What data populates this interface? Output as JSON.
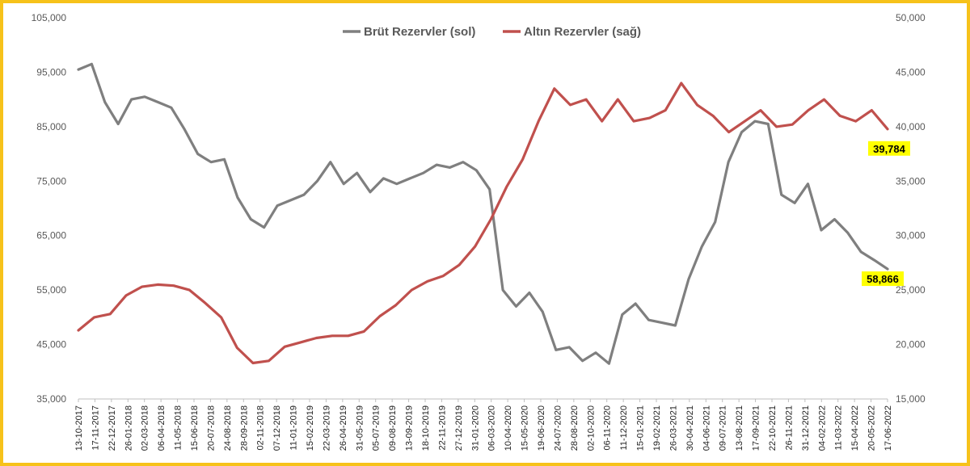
{
  "chart_data": {
    "type": "line",
    "title": "",
    "xlabel": "",
    "ylabel": "",
    "y_left_lim": [
      35000,
      105000
    ],
    "y_right_lim": [
      15000,
      50000
    ],
    "y_left_ticks": [
      "35,000",
      "45,000",
      "55,000",
      "65,000",
      "75,000",
      "85,000",
      "95,000",
      "105,000"
    ],
    "y_right_ticks": [
      "15,000",
      "20,000",
      "25,000",
      "30,000",
      "35,000",
      "40,000",
      "45,000",
      "50,000"
    ],
    "x_ticks": [
      "13-10-2017",
      "17-11-2017",
      "22-12-2017",
      "26-01-2018",
      "02-03-2018",
      "06-04-2018",
      "11-05-2018",
      "15-06-2018",
      "20-07-2018",
      "24-08-2018",
      "28-09-2018",
      "02-11-2018",
      "07-12-2018",
      "11-01-2019",
      "15-02-2019",
      "22-03-2019",
      "26-04-2019",
      "31-05-2019",
      "05-07-2019",
      "09-08-2019",
      "13-09-2019",
      "18-10-2019",
      "22-11-2019",
      "27-12-2019",
      "31-01-2020",
      "06-03-2020",
      "10-04-2020",
      "15-05-2020",
      "19-06-2020",
      "24-07-2020",
      "28-08-2020",
      "02-10-2020",
      "06-11-2020",
      "11-12-2020",
      "15-01-2021",
      "19-02-2021",
      "26-03-2021",
      "30-04-2021",
      "04-06-2021",
      "09-07-2021",
      "13-08-2021",
      "17-09-2021",
      "22-10-2021",
      "26-11-2021",
      "31-12-2021",
      "04-02-2022",
      "11-03-2022",
      "15-04-2022",
      "20-05-2022",
      "17-06-2022"
    ],
    "legend_position": "top-center",
    "grid": false,
    "series": [
      {
        "name": "Brüt Rezervler (sol)",
        "axis": "left",
        "color": "#7f7f7f",
        "values": [
          95500,
          96500,
          89500,
          85500,
          90000,
          90500,
          89500,
          88500,
          84500,
          80000,
          78500,
          79000,
          72000,
          68000,
          66500,
          70500,
          71500,
          72500,
          75000,
          78500,
          74500,
          76500,
          73000,
          75500,
          74500,
          75500,
          76500,
          78000,
          77500,
          78500,
          77000,
          73500,
          55000,
          52000,
          54500,
          51000,
          44000,
          44500,
          42000,
          43500,
          41500,
          50500,
          52500,
          49500,
          49000,
          48500,
          57000,
          63000,
          67500,
          78500,
          84000,
          86000,
          85500,
          72500,
          71000,
          74500,
          66000,
          68000,
          65500,
          62000,
          60500,
          58866
        ],
        "end_label": "58,866"
      },
      {
        "name": "Altın Rezervler (sağ)",
        "axis": "right",
        "color": "#c0504d",
        "values": [
          21300,
          22500,
          22800,
          24500,
          25300,
          25500,
          25400,
          25000,
          23800,
          22500,
          19700,
          18300,
          18500,
          19800,
          20200,
          20600,
          20800,
          20800,
          21200,
          22600,
          23600,
          25000,
          25800,
          26300,
          27300,
          29000,
          31500,
          34500,
          37000,
          40500,
          43500,
          42000,
          42500,
          40500,
          42500,
          40500,
          40800,
          41500,
          44000,
          42000,
          41000,
          39500,
          40500,
          41500,
          40000,
          40200,
          41500,
          42500,
          41000,
          40500,
          41500,
          39784
        ],
        "end_label": "39,784"
      }
    ]
  }
}
